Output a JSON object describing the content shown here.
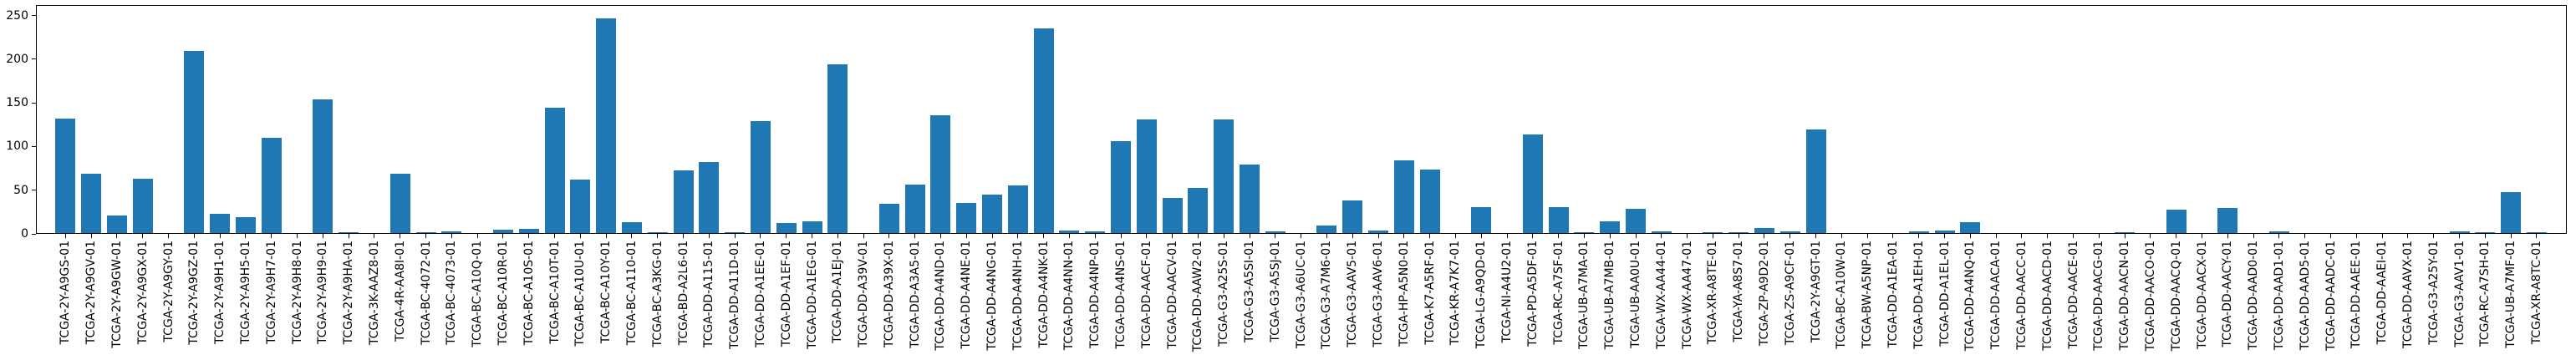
{
  "chart_data": {
    "type": "bar",
    "title": "",
    "xlabel": "",
    "ylabel": "",
    "bar_color": "#1f77b4",
    "axis_color": "#000000",
    "ylim": [
      0,
      262
    ],
    "yticks": [
      0,
      50,
      100,
      150,
      200,
      250
    ],
    "x_tick_rotation": 90,
    "grid": false,
    "legend": "none",
    "categories": [
      "TCGA-2Y-A9GS-01",
      "TCGA-2Y-A9GV-01",
      "TCGA-2Y-A9GW-01",
      "TCGA-2Y-A9GX-01",
      "TCGA-2Y-A9GY-01",
      "TCGA-2Y-A9GZ-01",
      "TCGA-2Y-A9H1-01",
      "TCGA-2Y-A9H5-01",
      "TCGA-2Y-A9H7-01",
      "TCGA-2Y-A9H8-01",
      "TCGA-2Y-A9H9-01",
      "TCGA-2Y-A9HA-01",
      "TCGA-3K-AAZ8-01",
      "TCGA-4R-AA8I-01",
      "TCGA-BC-4072-01",
      "TCGA-BC-4073-01",
      "TCGA-BC-A10Q-01",
      "TCGA-BC-A10R-01",
      "TCGA-BC-A10S-01",
      "TCGA-BC-A10T-01",
      "TCGA-BC-A10U-01",
      "TCGA-BC-A10Y-01",
      "TCGA-BC-A110-01",
      "TCGA-BC-A3KG-01",
      "TCGA-BD-A2L6-01",
      "TCGA-DD-A115-01",
      "TCGA-DD-A11D-01",
      "TCGA-DD-A1EE-01",
      "TCGA-DD-A1EF-01",
      "TCGA-DD-A1EG-01",
      "TCGA-DD-A1EJ-01",
      "TCGA-DD-A39V-01",
      "TCGA-DD-A39X-01",
      "TCGA-DD-A3A5-01",
      "TCGA-DD-A4ND-01",
      "TCGA-DD-A4NE-01",
      "TCGA-DD-A4NG-01",
      "TCGA-DD-A4NH-01",
      "TCGA-DD-A4NK-01",
      "TCGA-DD-A4NN-01",
      "TCGA-DD-A4NP-01",
      "TCGA-DD-A4NS-01",
      "TCGA-DD-AACF-01",
      "TCGA-DD-AACV-01",
      "TCGA-DD-AAW2-01",
      "TCGA-G3-A25S-01",
      "TCGA-G3-A5SI-01",
      "TCGA-G3-A5SJ-01",
      "TCGA-G3-A6UC-01",
      "TCGA-G3-A7M6-01",
      "TCGA-G3-AAV5-01",
      "TCGA-G3-AAV6-01",
      "TCGA-HP-A5N0-01",
      "TCGA-K7-A5RF-01",
      "TCGA-KR-A7K7-01",
      "TCGA-LG-A9QD-01",
      "TCGA-NI-A4U2-01",
      "TCGA-PD-A5DF-01",
      "TCGA-RC-A7SF-01",
      "TCGA-UB-A7MA-01",
      "TCGA-UB-A7MB-01",
      "TCGA-UB-AA0U-01",
      "TCGA-WX-AA44-01",
      "TCGA-WX-AA47-01",
      "TCGA-XR-A8TE-01",
      "TCGA-YA-A8S7-01",
      "TCGA-ZP-A9D2-01",
      "TCGA-ZS-A9CF-01",
      "TCGA-2Y-A9GT-01",
      "TCGA-BC-A10W-01",
      "TCGA-BW-A5NP-01",
      "TCGA-DD-A1EA-01",
      "TCGA-DD-A1EH-01",
      "TCGA-DD-A1EL-01",
      "TCGA-DD-A4NQ-01",
      "TCGA-DD-AACA-01",
      "TCGA-DD-AACC-01",
      "TCGA-DD-AACD-01",
      "TCGA-DD-AACE-01",
      "TCGA-DD-AACG-01",
      "TCGA-DD-AACN-01",
      "TCGA-DD-AACO-01",
      "TCGA-DD-AACQ-01",
      "TCGA-DD-AACX-01",
      "TCGA-DD-AACY-01",
      "TCGA-DD-AAD0-01",
      "TCGA-DD-AAD1-01",
      "TCGA-DD-AAD5-01",
      "TCGA-DD-AADC-01",
      "TCGA-DD-AAEE-01",
      "TCGA-DD-AAEI-01",
      "TCGA-DD-AAVX-01",
      "TCGA-G3-A25Y-01",
      "TCGA-G3-AAV1-01",
      "TCGA-RC-A7SH-01",
      "TCGA-UB-A7MF-01",
      "TCGA-XR-A8TC-01"
    ],
    "values": [
      132,
      69,
      21,
      63,
      0,
      209,
      23,
      19,
      110,
      0,
      154,
      2,
      0,
      69,
      2,
      3,
      1,
      5,
      6,
      144,
      62,
      247,
      13,
      2,
      73,
      82,
      2,
      129,
      12,
      14,
      194,
      0,
      34,
      56,
      136,
      35,
      45,
      55,
      235,
      4,
      3,
      106,
      131,
      41,
      53,
      131,
      79,
      3,
      0,
      10,
      38,
      4,
      84,
      74,
      0,
      31,
      0,
      114,
      31,
      2,
      14,
      29,
      3,
      0,
      2,
      2,
      7,
      3,
      120,
      0,
      1,
      1,
      3,
      4,
      13,
      0,
      0,
      0,
      0,
      1,
      2,
      0,
      28,
      0,
      30,
      1,
      3,
      0,
      0,
      0,
      0,
      0,
      0,
      3,
      2,
      48,
      2
    ]
  }
}
